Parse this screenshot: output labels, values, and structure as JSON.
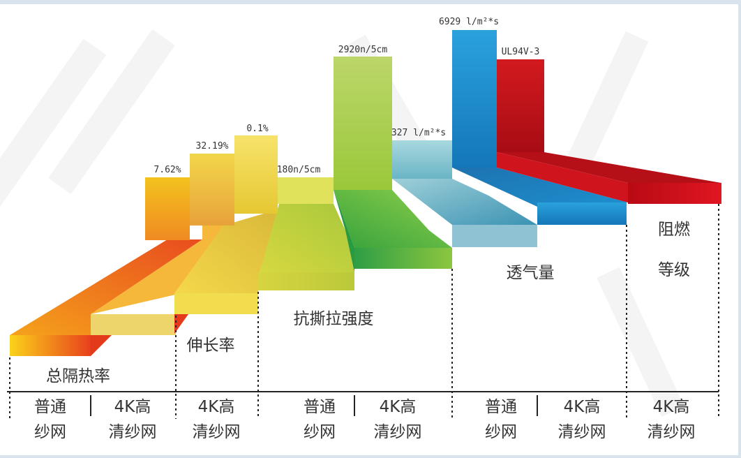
{
  "chart_data": {
    "type": "bar",
    "categories": [
      {
        "label": "总隔热率",
        "lines": [
          "总隔热率"
        ]
      },
      {
        "label": "伸长率",
        "lines": [
          "伸长率"
        ]
      },
      {
        "label": "抗撕拉强度",
        "lines": [
          "抗撕拉强度"
        ]
      },
      {
        "label": "透气量",
        "lines": [
          "透气量"
        ]
      },
      {
        "label": "阻燃等级",
        "lines": [
          "阻燃",
          "等级"
        ]
      }
    ],
    "values": [
      {
        "category": "总隔热率",
        "label": "7.62%"
      },
      {
        "category": "伸长率",
        "label": "32.19%"
      },
      {
        "category": "伸长率",
        "label": "0.1%"
      },
      {
        "category": "抗撕拉强度",
        "label": "180n/5cm"
      },
      {
        "category": "抗撕拉强度",
        "label": "2920n/5cm"
      },
      {
        "category": "透气量",
        "label": "327 l/m²*s"
      },
      {
        "category": "透气量",
        "label": "6929 l/m²*s"
      },
      {
        "category": "阻燃等级",
        "label": "UL94V-3"
      }
    ],
    "x_labels": [
      [
        "普通",
        "纱网"
      ],
      [
        "4K高",
        "清纱网"
      ],
      [
        "4K高",
        "清纱网"
      ],
      [
        "普通",
        "纱网"
      ],
      [
        "4K高",
        "清纱网"
      ],
      [
        "普通",
        "纱网"
      ],
      [
        "4K高",
        "清纱网"
      ],
      [
        "4K高",
        "清纱网"
      ]
    ],
    "colors": {
      "orange": "#f07a22",
      "yellow": "#f2cf2a",
      "lime": "#c8d43a",
      "green": "#8cc63f",
      "teal": "#5fb8c8",
      "blue": "#1e8fd0",
      "red": "#d4121e"
    }
  }
}
